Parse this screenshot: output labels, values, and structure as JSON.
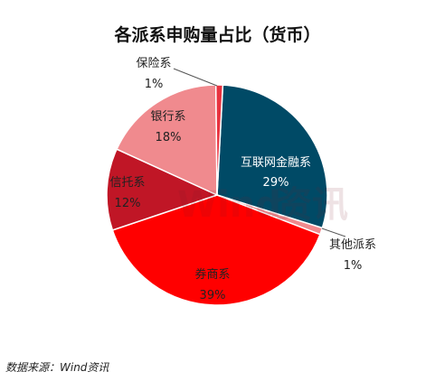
{
  "chart_data": {
    "type": "pie",
    "title": "各派系申购量占比（货币）",
    "slices": [
      {
        "label": "互联网金融系",
        "value": 29,
        "value_label": "29%",
        "color": "#004a66"
      },
      {
        "label": "其他派系",
        "value": 1,
        "value_label": "1%",
        "color": "#f08a8e"
      },
      {
        "label": "券商系",
        "value": 39,
        "value_label": "39%",
        "color": "#ff0000"
      },
      {
        "label": "信托系",
        "value": 12,
        "value_label": "12%",
        "color": "#c01626"
      },
      {
        "label": "银行系",
        "value": 18,
        "value_label": "18%",
        "color": "#f08a8e"
      },
      {
        "label": "保险系",
        "value": 1,
        "value_label": "1%",
        "color": "#e8323f"
      }
    ]
  },
  "source": "数据来源：Wind资讯",
  "watermark": "Wind 资讯"
}
